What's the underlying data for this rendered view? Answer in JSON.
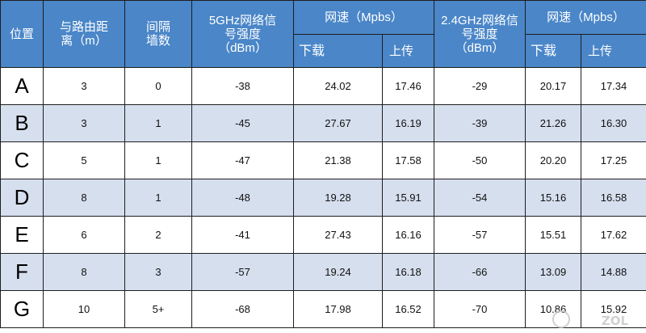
{
  "header": {
    "position": "位置",
    "distance": "与路由距离（m）",
    "walls": "间隔墙数",
    "signal_5g": "5GHz网络信号强度（dBm）",
    "speed_5g": "网速（Mpbs）",
    "signal_24g": "2.4GHz网络信号强度（dBm）",
    "speed_24g": "网速（Mpbs）",
    "download": "下载",
    "upload": "上传"
  },
  "rows": [
    {
      "pos": "A",
      "dist": "3",
      "walls": "0",
      "s5": "-38",
      "d5": "24.02",
      "u5": "17.46",
      "s24": "-29",
      "d24": "20.17",
      "u24": "17.34"
    },
    {
      "pos": "B",
      "dist": "3",
      "walls": "1",
      "s5": "-45",
      "d5": "27.67",
      "u5": "16.19",
      "s24": "-39",
      "d24": "21.26",
      "u24": "16.30"
    },
    {
      "pos": "C",
      "dist": "5",
      "walls": "1",
      "s5": "-47",
      "d5": "21.38",
      "u5": "17.58",
      "s24": "-50",
      "d24": "20.20",
      "u24": "17.25"
    },
    {
      "pos": "D",
      "dist": "8",
      "walls": "1",
      "s5": "-48",
      "d5": "19.28",
      "u5": "15.91",
      "s24": "-54",
      "d24": "15.16",
      "u24": "16.58"
    },
    {
      "pos": "E",
      "dist": "6",
      "walls": "2",
      "s5": "-41",
      "d5": "27.43",
      "u5": "16.16",
      "s24": "-57",
      "d24": "15.51",
      "u24": "17.62"
    },
    {
      "pos": "F",
      "dist": "8",
      "walls": "3",
      "s5": "-57",
      "d5": "19.24",
      "u5": "16.18",
      "s24": "-66",
      "d24": "13.09",
      "u24": "14.88"
    },
    {
      "pos": "G",
      "dist": "10",
      "walls": "5+",
      "s5": "-68",
      "d5": "17.98",
      "u5": "16.52",
      "s24": "-70",
      "d24": "10.86",
      "u24": "15.92"
    }
  ],
  "watermark": "ZOL",
  "colors": {
    "header_bg": "#4a86c8",
    "row_alt": "#d6dfee",
    "row_plain": "#ffffff",
    "border": "#1e1e1e"
  }
}
